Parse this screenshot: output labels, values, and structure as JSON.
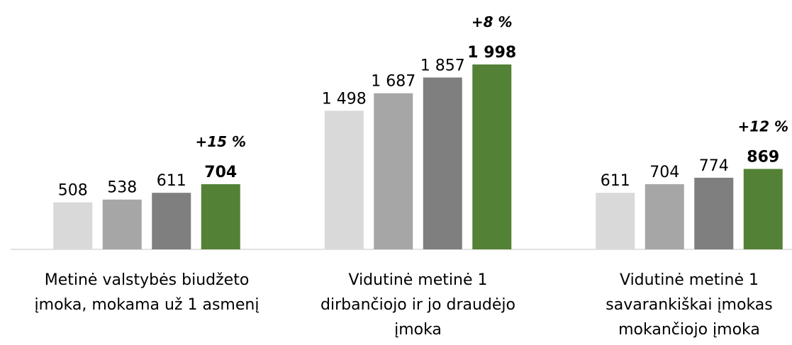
{
  "chart_data": {
    "type": "bar",
    "categories": [
      "Metinė valstybės biudžeto\nįmoka, mokama už 1 asmenį",
      "Vidutinė metinė 1\ndirbančiojo ir jo draudėjo\nįmoka",
      "Vidutinė metinė 1\nsavarankiškai įmokas\nmokančiojo įmoka"
    ],
    "series": [
      {
        "color": "#d9d9d9",
        "values": [
          508,
          1498,
          611
        ],
        "value_labels": [
          "508",
          "1 498",
          "611"
        ]
      },
      {
        "color": "#a6a6a6",
        "values": [
          538,
          1687,
          704
        ],
        "value_labels": [
          "538",
          "1 687",
          "704"
        ]
      },
      {
        "color": "#7f7f7f",
        "values": [
          611,
          1857,
          774
        ],
        "value_labels": [
          "611",
          "1 857",
          "774"
        ]
      },
      {
        "color": "#538135",
        "values": [
          704,
          1998,
          869
        ],
        "value_labels": [
          "704",
          "1 998",
          "869"
        ]
      }
    ],
    "annotations": [
      "+15 %",
      "+8 %",
      "+12 %"
    ]
  }
}
